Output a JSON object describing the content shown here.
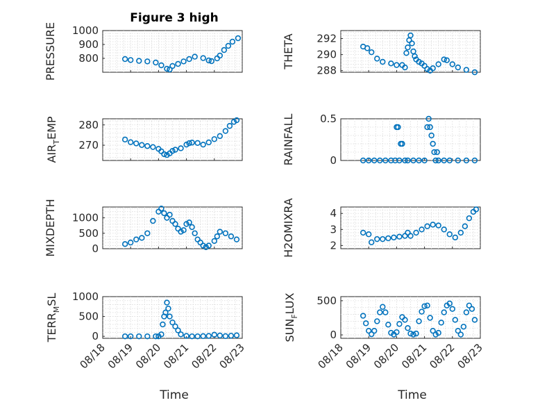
{
  "figure": {
    "title": "Figure 3 high",
    "xlabel": "Time"
  },
  "colors": {
    "marker": "#0072bd",
    "axis": "#262626",
    "grid": "#d9d9d9"
  },
  "chart_data": [
    {
      "type": "scatter",
      "id": "pressure",
      "ylabel": "PRESSURE",
      "xlim": [
        18,
        23
      ],
      "ylim": [
        700,
        1000
      ],
      "yticks": [
        800,
        900,
        1000
      ],
      "xticklabels": [],
      "grid": "on",
      "x": [
        18.8,
        19.0,
        19.3,
        19.6,
        19.9,
        20.1,
        20.3,
        20.4,
        20.5,
        20.7,
        20.9,
        21.1,
        21.3,
        21.6,
        21.8,
        21.9,
        22.1,
        22.2,
        22.35,
        22.5,
        22.65,
        22.85
      ],
      "y": [
        795,
        788,
        782,
        778,
        770,
        750,
        725,
        720,
        745,
        760,
        778,
        795,
        812,
        802,
        785,
        780,
        800,
        820,
        860,
        890,
        920,
        945
      ]
    },
    {
      "type": "scatter",
      "id": "theta",
      "ylabel": "THETA",
      "xlim": [
        18,
        23
      ],
      "ylim": [
        287.8,
        293
      ],
      "yticks": [
        288,
        290,
        292
      ],
      "xticklabels": [],
      "grid": "on",
      "x": [
        18.8,
        18.95,
        19.1,
        19.3,
        19.5,
        19.8,
        20.0,
        20.2,
        20.3,
        20.35,
        20.4,
        20.45,
        20.5,
        20.55,
        20.6,
        20.65,
        20.7,
        20.8,
        20.9,
        21.0,
        21.1,
        21.2,
        21.3,
        21.5,
        21.7,
        21.8,
        22.0,
        22.2,
        22.5,
        22.8
      ],
      "y": [
        291.0,
        290.8,
        290.3,
        289.5,
        289.1,
        288.9,
        288.7,
        288.7,
        288.4,
        290.2,
        290.9,
        291.8,
        292.4,
        291.4,
        290.4,
        289.8,
        289.4,
        289.1,
        288.9,
        288.6,
        288.2,
        288.0,
        288.3,
        288.8,
        289.4,
        289.3,
        288.8,
        288.4,
        288.1,
        287.8
      ]
    },
    {
      "type": "scatter",
      "id": "airtemp",
      "ylabel": "AIR_TEMP",
      "ylabel_main": "AIR",
      "ylabel_sub": "T",
      "ylabel_rest": "EMP",
      "xlim": [
        18,
        23
      ],
      "ylim": [
        262.5,
        283
      ],
      "yticks": [
        270,
        280
      ],
      "xticklabels": [],
      "grid": "on",
      "x": [
        18.8,
        19.0,
        19.2,
        19.4,
        19.6,
        19.8,
        20.0,
        20.1,
        20.2,
        20.3,
        20.4,
        20.5,
        20.6,
        20.8,
        21.0,
        21.1,
        21.2,
        21.4,
        21.6,
        21.8,
        22.0,
        22.2,
        22.4,
        22.55,
        22.7,
        22.8
      ],
      "y": [
        272.8,
        271.5,
        270.9,
        270.1,
        269.6,
        269.1,
        268.2,
        267.0,
        265.6,
        265.2,
        266.0,
        267.2,
        267.8,
        268.5,
        270.3,
        271.0,
        271.3,
        271.1,
        270.3,
        271.4,
        273.0,
        274.5,
        277.0,
        279.5,
        281.5,
        282.3
      ]
    },
    {
      "type": "scatter",
      "id": "rainfall",
      "ylabel": "RAINFALL",
      "xlim": [
        18,
        23
      ],
      "ylim": [
        0,
        0.5
      ],
      "yticks": [
        0,
        0.5
      ],
      "xticklabels": [],
      "grid": "on",
      "x": [
        18.8,
        19.0,
        19.2,
        19.4,
        19.6,
        19.8,
        19.95,
        20.0,
        20.05,
        20.1,
        20.15,
        20.2,
        20.3,
        20.4,
        20.6,
        20.8,
        21.0,
        21.1,
        21.15,
        21.2,
        21.25,
        21.3,
        21.35,
        21.4,
        21.45,
        21.5,
        21.7,
        21.9,
        22.2,
        22.5,
        22.8
      ],
      "y": [
        0,
        0,
        0,
        0,
        0,
        0,
        0,
        0.4,
        0.4,
        0,
        0.2,
        0.2,
        0,
        0,
        0,
        0,
        0,
        0.4,
        0.5,
        0.4,
        0.3,
        0.2,
        0.1,
        0,
        0.1,
        0,
        0,
        0,
        0,
        0,
        0
      ]
    },
    {
      "type": "scatter",
      "id": "mixdepth",
      "ylabel": "MIXDEPTH",
      "xlim": [
        18,
        23
      ],
      "ylim": [
        0,
        1350
      ],
      "yticks": [
        0,
        500,
        1000
      ],
      "xticklabels": [],
      "grid": "on",
      "x": [
        18.8,
        19.0,
        19.2,
        19.4,
        19.6,
        19.8,
        20.0,
        20.1,
        20.2,
        20.3,
        20.4,
        20.5,
        20.6,
        20.7,
        20.8,
        20.9,
        21.0,
        21.1,
        21.2,
        21.3,
        21.4,
        21.5,
        21.6,
        21.7,
        21.8,
        22.0,
        22.1,
        22.2,
        22.4,
        22.6,
        22.8
      ],
      "y": [
        150,
        200,
        300,
        350,
        500,
        900,
        1200,
        1300,
        1150,
        1000,
        1100,
        900,
        800,
        650,
        550,
        600,
        800,
        850,
        700,
        500,
        300,
        200,
        100,
        50,
        100,
        250,
        400,
        550,
        500,
        400,
        300
      ]
    },
    {
      "type": "scatter",
      "id": "h2omixra",
      "ylabel": "H2OMIXRA",
      "xlim": [
        18,
        23
      ],
      "ylim": [
        1.8,
        4.4
      ],
      "yticks": [
        2,
        3,
        4
      ],
      "xticklabels": [],
      "grid": "on",
      "x": [
        18.8,
        19.0,
        19.1,
        19.3,
        19.5,
        19.7,
        19.9,
        20.1,
        20.3,
        20.4,
        20.5,
        20.7,
        20.9,
        21.1,
        21.3,
        21.5,
        21.7,
        21.9,
        22.1,
        22.3,
        22.45,
        22.6,
        22.75,
        22.85
      ],
      "y": [
        2.8,
        2.7,
        2.2,
        2.4,
        2.4,
        2.45,
        2.5,
        2.55,
        2.6,
        2.8,
        2.6,
        2.8,
        3.0,
        3.2,
        3.3,
        3.25,
        3.0,
        2.7,
        2.5,
        2.8,
        3.2,
        3.7,
        4.1,
        4.25
      ]
    },
    {
      "type": "scatter",
      "id": "terrmsl",
      "ylabel": "TERR_MSL",
      "ylabel_main": "TERR",
      "ylabel_sub": "M",
      "ylabel_rest": "SL",
      "xlim": [
        18,
        23
      ],
      "ylim": [
        -50,
        1000
      ],
      "yticks": [
        0,
        500,
        1000
      ],
      "xticklabels": [
        "08/18",
        "08/19",
        "08/20",
        "08/21",
        "08/22",
        "08/23"
      ],
      "grid": "on",
      "x": [
        18.8,
        19.0,
        19.3,
        19.6,
        19.9,
        20.0,
        20.1,
        20.15,
        20.2,
        20.25,
        20.3,
        20.35,
        20.4,
        20.5,
        20.6,
        20.7,
        20.8,
        21.0,
        21.2,
        21.4,
        21.6,
        21.8,
        22.0,
        22.2,
        22.4,
        22.6,
        22.8
      ],
      "y": [
        0,
        0,
        0,
        0,
        0,
        0,
        50,
        300,
        500,
        600,
        850,
        700,
        500,
        350,
        250,
        150,
        50,
        10,
        0,
        0,
        5,
        10,
        40,
        20,
        5,
        15,
        25
      ]
    },
    {
      "type": "scatter",
      "id": "sunflux",
      "ylabel": "SUN_FLUX",
      "ylabel_main": "SUN",
      "ylabel_sub": "F",
      "ylabel_rest": "LUX",
      "xlim": [
        18,
        23
      ],
      "ylim": [
        -50,
        560
      ],
      "yticks": [
        0,
        500
      ],
      "xticklabels": [
        "08/18",
        "08/19",
        "08/20",
        "08/21",
        "08/22",
        "08/23"
      ],
      "grid": "on",
      "x": [
        18.8,
        18.9,
        19.0,
        19.1,
        19.2,
        19.3,
        19.4,
        19.5,
        19.6,
        19.7,
        19.8,
        19.9,
        20.0,
        20.1,
        20.2,
        20.3,
        20.4,
        20.5,
        20.6,
        20.7,
        20.8,
        20.9,
        21.0,
        21.1,
        21.2,
        21.3,
        21.4,
        21.5,
        21.6,
        21.7,
        21.8,
        21.9,
        22.0,
        22.1,
        22.2,
        22.3,
        22.4,
        22.5,
        22.6,
        22.7,
        22.8
      ],
      "y": [
        280,
        170,
        60,
        10,
        60,
        200,
        330,
        410,
        330,
        150,
        30,
        5,
        40,
        160,
        260,
        220,
        100,
        20,
        5,
        20,
        200,
        340,
        420,
        430,
        250,
        60,
        5,
        30,
        180,
        330,
        430,
        460,
        380,
        220,
        60,
        5,
        120,
        330,
        430,
        380,
        220
      ]
    }
  ]
}
